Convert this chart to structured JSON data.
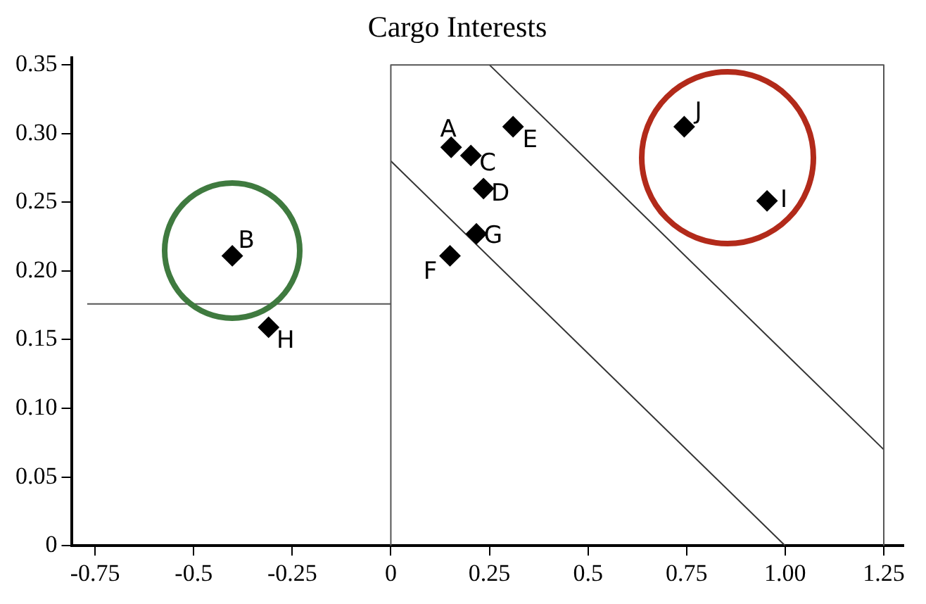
{
  "chart_data": {
    "type": "scatter",
    "title": "Cargo Interests",
    "marker": "diamond",
    "grid": false,
    "legend": false,
    "xlim": [
      -0.81,
      1.3
    ],
    "ylim": [
      0,
      0.355
    ],
    "xticks": [
      -0.75,
      -0.5,
      -0.25,
      0,
      0.25,
      0.5,
      {
        "value": 0.75,
        "label": "0.75"
      },
      {
        "value": 1,
        "label": "1.00"
      },
      1.25
    ],
    "yticks": [
      0,
      {
        "value": 0.05,
        "label": "0.05"
      },
      {
        "value": 0.1,
        "label": "0.10"
      },
      {
        "value": 0.15,
        "label": "0.15"
      },
      {
        "value": 0.2,
        "label": "0.20"
      },
      {
        "value": 0.25,
        "label": "0.25"
      },
      {
        "value": 0.3,
        "label": "0.30"
      },
      {
        "value": 0.35,
        "label": "0.35"
      }
    ],
    "series": [
      {
        "color": "#000000",
        "x": [
          0.153,
          -0.402,
          0.203,
          0.235,
          0.31,
          0.15,
          0.217,
          -0.31,
          0.954,
          0.744
        ],
        "values": [
          0.29,
          0.211,
          0.284,
          0.26,
          0.305,
          0.211,
          0.227,
          0.159,
          0.251,
          0.305
        ]
      },
      {
        "type": "line",
        "marker": "none",
        "color": "#555555",
        "x": [
          -0.77,
          0
        ],
        "values": [
          0.176,
          0.176
        ]
      },
      {
        "type": "line",
        "marker": "none",
        "color": "#555555",
        "x": [
          0,
          0,
          1.25,
          1.25
        ],
        "values": [
          0,
          0.35,
          0.35,
          0
        ]
      },
      {
        "type": "line",
        "marker": "none",
        "color": "#333333",
        "x": [
          0,
          1
        ],
        "values": [
          0.28,
          0
        ]
      },
      {
        "type": "line",
        "marker": "none",
        "color": "#333333",
        "x": [
          0.25,
          1.25
        ],
        "values": [
          0.35,
          0.07
        ]
      }
    ],
    "annotations": [
      {
        "text": "A",
        "x": 0.153,
        "y": 0.29
      },
      {
        "text": "B",
        "x": -0.402,
        "y": 0.211
      },
      {
        "text": "C",
        "x": 0.203,
        "y": 0.284
      },
      {
        "text": "D",
        "x": 0.235,
        "y": 0.26
      },
      {
        "text": "E",
        "x": 0.31,
        "y": 0.305
      },
      {
        "text": "F",
        "x": 0.15,
        "y": 0.211
      },
      {
        "text": "G",
        "x": 0.217,
        "y": 0.227
      },
      {
        "text": "H",
        "x": -0.31,
        "y": 0.159
      },
      {
        "text": "I",
        "x": 0.954,
        "y": 0.251
      },
      {
        "text": "J",
        "x": 0.744,
        "y": 0.305
      }
    ]
  }
}
